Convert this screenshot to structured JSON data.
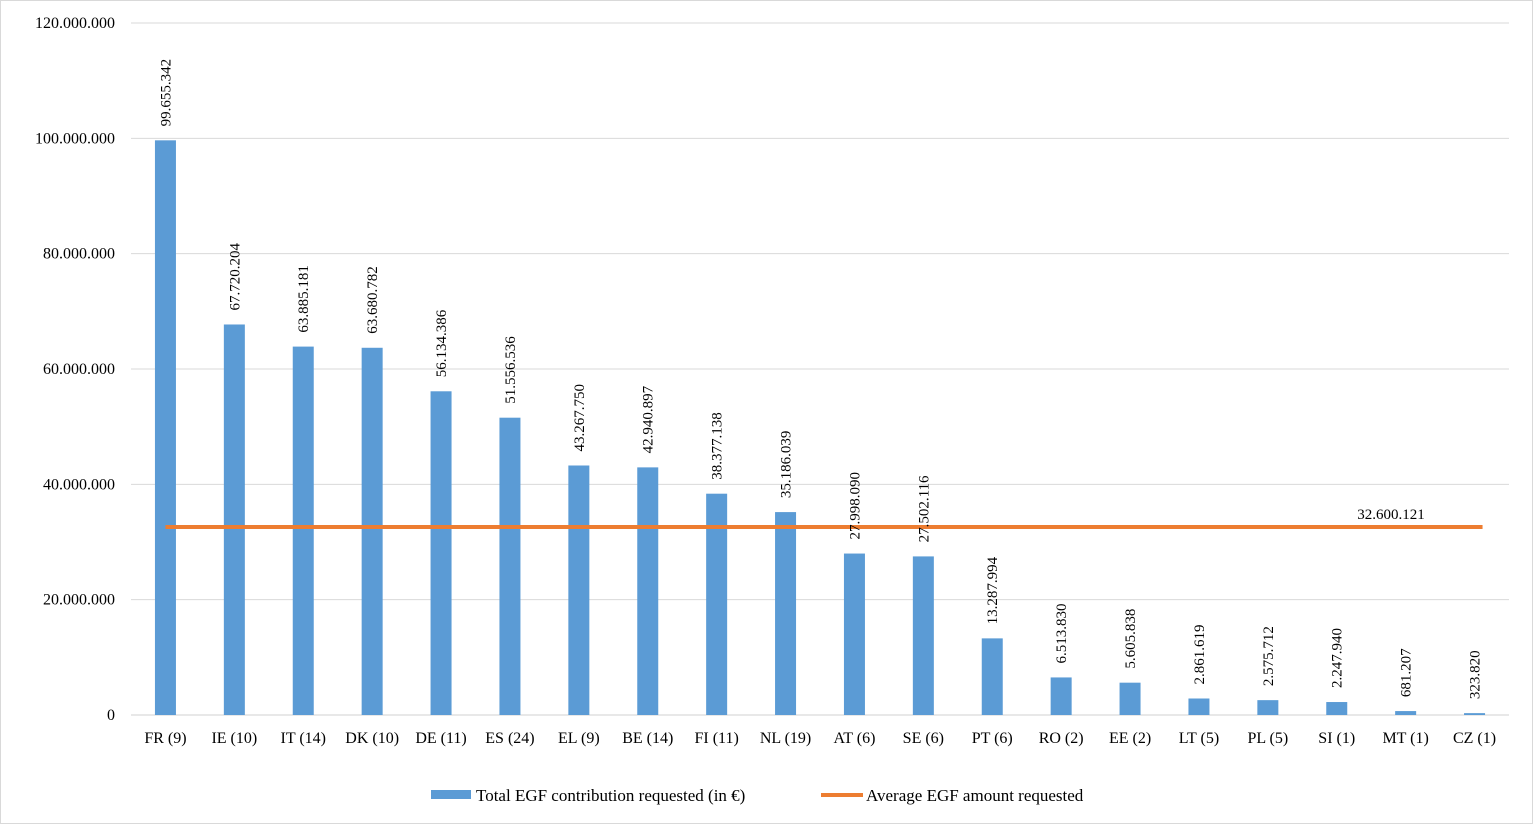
{
  "chart_data": {
    "type": "bar",
    "categories": [
      "FR (9)",
      "IE (10)",
      "IT (14)",
      "DK (10)",
      "DE (11)",
      "ES (24)",
      "EL (9)",
      "BE (14)",
      "FI (11)",
      "NL (19)",
      "AT (6)",
      "SE (6)",
      "PT (6)",
      "RO (2)",
      "EE (2)",
      "LT (5)",
      "PL (5)",
      "SI (1)",
      "MT (1)",
      "CZ (1)"
    ],
    "series": [
      {
        "name": "Total EGF contribution requested (in €)",
        "type": "bar",
        "color": "#5b9bd5",
        "values": [
          99655342,
          67720204,
          63885181,
          63680782,
          56134386,
          51556536,
          43267750,
          42940897,
          38377138,
          35186039,
          27998090,
          27502116,
          13287994,
          6513830,
          5605838,
          2861619,
          2575712,
          2247940,
          681207,
          323820
        ],
        "labels": [
          "99.655.342",
          "67.720.204",
          "63.885.181",
          "63.680.782",
          "56.134.386",
          "51.556.536",
          "43.267.750",
          "42.940.897",
          "38.377.138",
          "35.186.039",
          "27.998.090",
          "27.502.116",
          "13.287.994",
          "6.513.830",
          "5.605.838",
          "2.861.619",
          "2.575.712",
          "2.247.940",
          "681.207",
          "323.820"
        ]
      },
      {
        "name": "Average EGF amount requested",
        "type": "line",
        "color": "#ed7d31",
        "value": 32600121,
        "label": "32.600.121"
      }
    ],
    "y_ticks": [
      0,
      20000000,
      40000000,
      60000000,
      80000000,
      100000000,
      120000000
    ],
    "y_tick_labels": [
      "0",
      "20.000.000",
      "40.000.000",
      "60.000.000",
      "80.000.000",
      "100.000.000",
      "120.000.000"
    ],
    "ylim": [
      0,
      120000000
    ],
    "grid": true,
    "legend_position": "bottom"
  }
}
